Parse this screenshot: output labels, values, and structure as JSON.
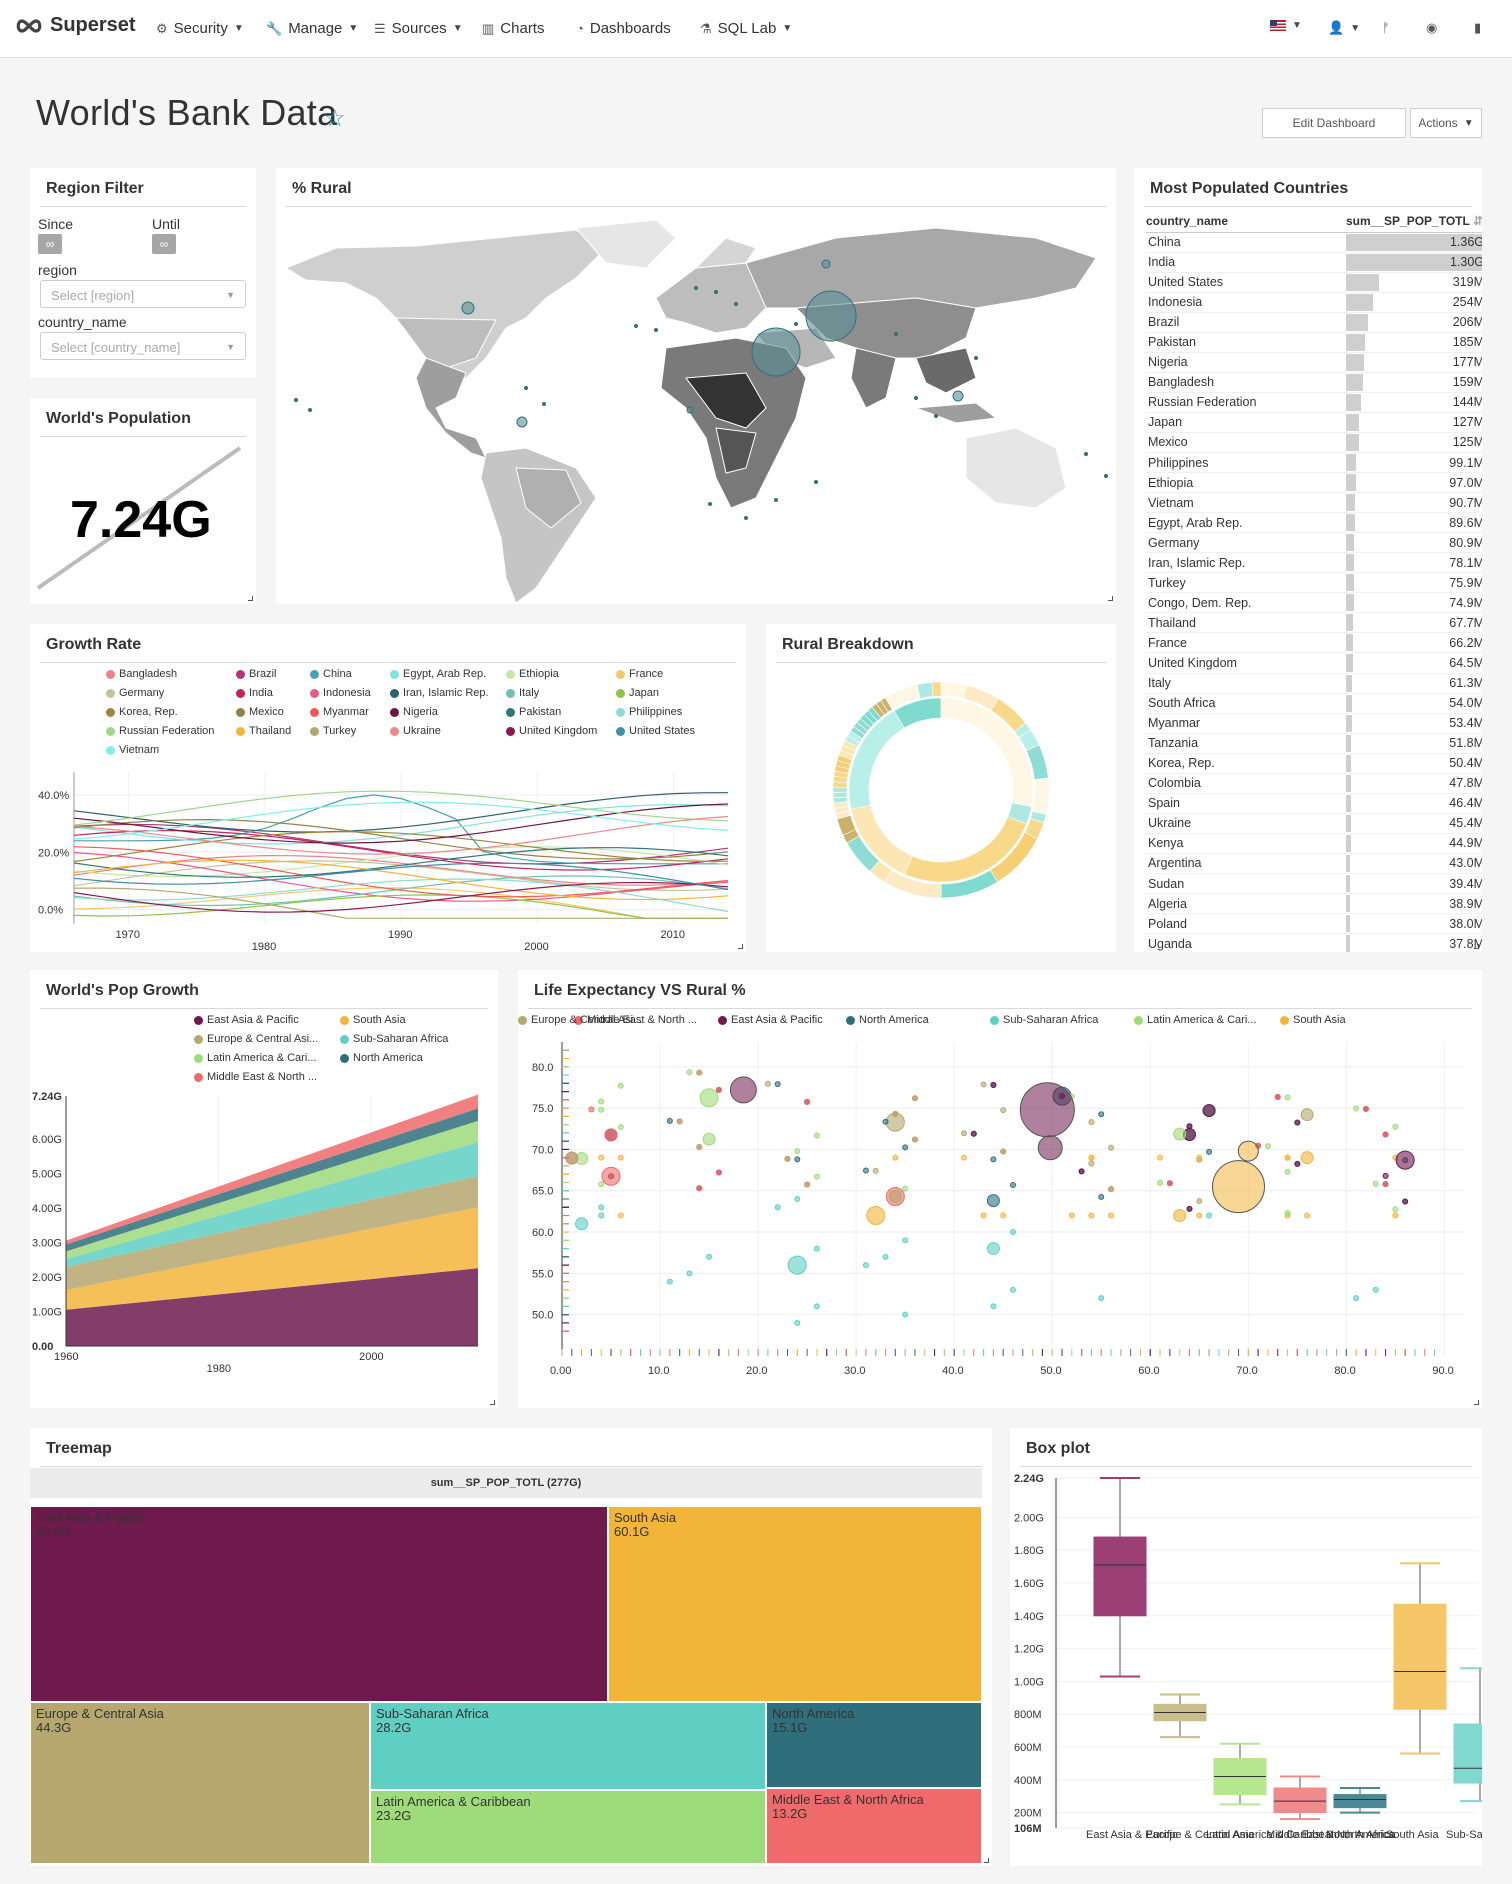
{
  "nav": {
    "brand": "Superset",
    "items": [
      {
        "label": "Security",
        "icon": "gear-icon",
        "caret": true
      },
      {
        "label": "Manage",
        "icon": "wrench-icon",
        "caret": true
      },
      {
        "label": "Sources",
        "icon": "database-icon",
        "caret": true
      },
      {
        "label": "Charts",
        "icon": "bar-chart-icon",
        "caret": false
      },
      {
        "label": "Dashboards",
        "icon": "dashboard-icon",
        "caret": false
      },
      {
        "label": "SQL Lab",
        "icon": "flask-icon",
        "caret": true
      }
    ],
    "right_icons": [
      "us-flag-icon",
      "user-icon",
      "git-branch-icon",
      "github-icon",
      "book-icon"
    ]
  },
  "dashboard": {
    "title": "World's Bank Data",
    "edit_button": "Edit Dashboard",
    "actions_button": "Actions"
  },
  "region_filter": {
    "title": "Region Filter",
    "since_label": "Since",
    "until_label": "Until",
    "since_value": "∞",
    "until_value": "∞",
    "region_label": "region",
    "region_placeholder": "Select [region]",
    "country_label": "country_name",
    "country_placeholder": "Select [country_name]"
  },
  "world_population": {
    "title": "World's Population",
    "value": "7.24G"
  },
  "rural_map": {
    "title": "% Rural"
  },
  "most_populated": {
    "title": "Most Populated Countries",
    "col_country": "country_name",
    "col_value": "sum__SP_POP_TOTL",
    "rows": [
      {
        "country": "China",
        "value": "1.36G",
        "num": 1360
      },
      {
        "country": "India",
        "value": "1.30G",
        "num": 1300
      },
      {
        "country": "United States",
        "value": "319M",
        "num": 319
      },
      {
        "country": "Indonesia",
        "value": "254M",
        "num": 254
      },
      {
        "country": "Brazil",
        "value": "206M",
        "num": 206
      },
      {
        "country": "Pakistan",
        "value": "185M",
        "num": 185
      },
      {
        "country": "Nigeria",
        "value": "177M",
        "num": 177
      },
      {
        "country": "Bangladesh",
        "value": "159M",
        "num": 159
      },
      {
        "country": "Russian Federation",
        "value": "144M",
        "num": 144
      },
      {
        "country": "Japan",
        "value": "127M",
        "num": 127
      },
      {
        "country": "Mexico",
        "value": "125M",
        "num": 125
      },
      {
        "country": "Philippines",
        "value": "99.1M",
        "num": 99.1
      },
      {
        "country": "Ethiopia",
        "value": "97.0M",
        "num": 97.0
      },
      {
        "country": "Vietnam",
        "value": "90.7M",
        "num": 90.7
      },
      {
        "country": "Egypt, Arab Rep.",
        "value": "89.6M",
        "num": 89.6
      },
      {
        "country": "Germany",
        "value": "80.9M",
        "num": 80.9
      },
      {
        "country": "Iran, Islamic Rep.",
        "value": "78.1M",
        "num": 78.1
      },
      {
        "country": "Turkey",
        "value": "75.9M",
        "num": 75.9
      },
      {
        "country": "Congo, Dem. Rep.",
        "value": "74.9M",
        "num": 74.9
      },
      {
        "country": "Thailand",
        "value": "67.7M",
        "num": 67.7
      },
      {
        "country": "France",
        "value": "66.2M",
        "num": 66.2
      },
      {
        "country": "United Kingdom",
        "value": "64.5M",
        "num": 64.5
      },
      {
        "country": "Italy",
        "value": "61.3M",
        "num": 61.3
      },
      {
        "country": "South Africa",
        "value": "54.0M",
        "num": 54.0
      },
      {
        "country": "Myanmar",
        "value": "53.4M",
        "num": 53.4
      },
      {
        "country": "Tanzania",
        "value": "51.8M",
        "num": 51.8
      },
      {
        "country": "Korea, Rep.",
        "value": "50.4M",
        "num": 50.4
      },
      {
        "country": "Colombia",
        "value": "47.8M",
        "num": 47.8
      },
      {
        "country": "Spain",
        "value": "46.4M",
        "num": 46.4
      },
      {
        "country": "Ukraine",
        "value": "45.4M",
        "num": 45.4
      },
      {
        "country": "Kenya",
        "value": "44.9M",
        "num": 44.9
      },
      {
        "country": "Argentina",
        "value": "43.0M",
        "num": 43.0
      },
      {
        "country": "Sudan",
        "value": "39.4M",
        "num": 39.4
      },
      {
        "country": "Algeria",
        "value": "38.9M",
        "num": 38.9
      },
      {
        "country": "Poland",
        "value": "38.0M",
        "num": 38.0
      },
      {
        "country": "Uganda",
        "value": "37.8M",
        "num": 37.8
      }
    ]
  },
  "growth_rate": {
    "title": "Growth Rate",
    "legend": [
      {
        "name": "Bangladesh",
        "color": "#e8838b"
      },
      {
        "name": "Brazil",
        "color": "#b5366f"
      },
      {
        "name": "China",
        "color": "#4aa0b5"
      },
      {
        "name": "Egypt, Arab Rep.",
        "color": "#7fe3e0"
      },
      {
        "name": "Ethiopia",
        "color": "#c8e6a6"
      },
      {
        "name": "France",
        "color": "#f6c86a"
      },
      {
        "name": "Germany",
        "color": "#c6c39a"
      },
      {
        "name": "India",
        "color": "#c0235f"
      },
      {
        "name": "Indonesia",
        "color": "#e75a8a"
      },
      {
        "name": "Iran, Islamic Rep.",
        "color": "#2f5f70"
      },
      {
        "name": "Italy",
        "color": "#6fc2b2"
      },
      {
        "name": "Japan",
        "color": "#8dc63f"
      },
      {
        "name": "Korea, Rep.",
        "color": "#a0853a"
      },
      {
        "name": "Mexico",
        "color": "#8f8448"
      },
      {
        "name": "Myanmar",
        "color": "#ef5b52"
      },
      {
        "name": "Nigeria",
        "color": "#6a1744"
      },
      {
        "name": "Pakistan",
        "color": "#2d7a78"
      },
      {
        "name": "Philippines",
        "color": "#8edbd0"
      },
      {
        "name": "Russian Federation",
        "color": "#9fd68c"
      },
      {
        "name": "Thailand",
        "color": "#f2b53a"
      },
      {
        "name": "Turkey",
        "color": "#b2a76e"
      },
      {
        "name": "Ukraine",
        "color": "#e88a8a"
      },
      {
        "name": "United Kingdom",
        "color": "#8a1a4f"
      },
      {
        "name": "United States",
        "color": "#3f8fa6"
      },
      {
        "name": "Vietnam",
        "color": "#7ff0e8"
      }
    ],
    "chart_data": {
      "type": "line",
      "x_ticks": [
        1970,
        1980,
        1990,
        2000,
        2010
      ],
      "y_ticks": [
        "0.0%",
        "20.0%",
        "40.0%"
      ],
      "xlim": [
        1966,
        2014
      ],
      "ylim": [
        -5,
        48
      ]
    }
  },
  "rural_breakdown": {
    "title": "Rural Breakdown"
  },
  "pop_growth": {
    "title": "World's Pop Growth",
    "legend": [
      {
        "name": "East Asia & Pacific",
        "color": "#6e1a4e"
      },
      {
        "name": "South Asia",
        "color": "#f2b53a"
      },
      {
        "name": "Europe & Central Asi...",
        "color": "#b5a76e"
      },
      {
        "name": "Sub-Saharan Africa",
        "color": "#5fcfc3"
      },
      {
        "name": "Latin America & Cari...",
        "color": "#9edb7a"
      },
      {
        "name": "North America",
        "color": "#2f6f7c"
      },
      {
        "name": "Middle East & North ...",
        "color": "#ef6b6b"
      }
    ],
    "chart_data": {
      "type": "area",
      "x_ticks": [
        1960,
        1980,
        2000
      ],
      "y_ticks": [
        "0.00",
        "1.00G",
        "2.00G",
        "3.00G",
        "4.00G",
        "5.00G",
        "6.00G",
        "7.24G"
      ],
      "xlim": [
        1960,
        2014
      ],
      "ylim": [
        0,
        7.24
      ],
      "x": [
        1960,
        2014
      ],
      "series": [
        {
          "name": "East Asia & Pacific",
          "values": [
            1.05,
            2.25
          ]
        },
        {
          "name": "South Asia",
          "values": [
            0.57,
            1.77
          ]
        },
        {
          "name": "Europe & Central Asi...",
          "values": [
            0.67,
            0.9
          ]
        },
        {
          "name": "Sub-Saharan Africa",
          "values": [
            0.23,
            0.98
          ]
        },
        {
          "name": "Latin America & Cari...",
          "values": [
            0.22,
            0.62
          ]
        },
        {
          "name": "North America",
          "values": [
            0.2,
            0.36
          ]
        },
        {
          "name": "Middle East & North ...",
          "values": [
            0.11,
            0.4
          ]
        }
      ]
    }
  },
  "life_expectancy": {
    "title": "Life Expectancy VS Rural %",
    "legend": [
      {
        "name": "Middle East & North ...",
        "color": "#ef6b6b"
      },
      {
        "name": "East Asia & Pacific",
        "color": "#6e1a4e"
      },
      {
        "name": "North America",
        "color": "#2f6f7c"
      },
      {
        "name": "Sub-Saharan Africa",
        "color": "#5fcfc3"
      },
      {
        "name": "Latin America & Cari...",
        "color": "#9edb7a"
      },
      {
        "name": "South Asia",
        "color": "#f2b53a"
      },
      {
        "name": "Europe & Central Asi...",
        "color": "#b5a76e"
      }
    ],
    "chart_data": {
      "type": "scatter",
      "x_ticks": [
        "0.00",
        "10.0",
        "20.0",
        "30.0",
        "40.0",
        "50.0",
        "60.0",
        "70.0",
        "80.0",
        "90.0"
      ],
      "y_ticks": [
        "50.0",
        "55.0",
        "60.0",
        "65.0",
        "70.0",
        "75.0",
        "80.0"
      ],
      "xlim": [
        0,
        92
      ],
      "ylim": [
        45,
        83
      ]
    }
  },
  "treemap": {
    "title": "Treemap",
    "header": "sum__SP_POP_TOTL (277G)",
    "cells": [
      {
        "name": "East Asia & Pacific",
        "value": "92.9G",
        "color": "#6e1a4e"
      },
      {
        "name": "South Asia",
        "value": "60.1G",
        "color": "#f2b53a"
      },
      {
        "name": "Europe & Central Asia",
        "value": "44.3G",
        "color": "#b5a76e"
      },
      {
        "name": "Sub-Saharan Africa",
        "value": "28.2G",
        "color": "#5fcfc3"
      },
      {
        "name": "North America",
        "value": "15.1G",
        "color": "#2f6f7c"
      },
      {
        "name": "Latin America & Caribbean",
        "value": "23.2G",
        "color": "#9edb7a"
      },
      {
        "name": "Middle East & North Africa",
        "value": "13.2G",
        "color": "#ef6b6b"
      }
    ]
  },
  "boxplot": {
    "title": "Box plot",
    "chart_data": {
      "type": "box",
      "y_ticks": [
        "106M",
        "200M",
        "400M",
        "600M",
        "800M",
        "1.00G",
        "1.20G",
        "1.40G",
        "1.60G",
        "1.80G",
        "2.00G",
        "2.24G"
      ],
      "ylim": [
        0.106,
        2.24
      ],
      "categories": [
        {
          "name": "East Asia & Pacific",
          "color": "#9b3f75",
          "q": [
            1.03,
            1.4,
            1.71,
            1.88,
            2.24
          ]
        },
        {
          "name": "Europe & Central Asia",
          "color": "#c9be8c",
          "q": [
            0.66,
            0.76,
            0.81,
            0.86,
            0.92
          ]
        },
        {
          "name": "Latin America & Caribbean",
          "color": "#b6e690",
          "q": [
            0.25,
            0.31,
            0.42,
            0.53,
            0.62
          ]
        },
        {
          "name": "Middle East & North Africa",
          "color": "#f08b8b",
          "q": [
            0.16,
            0.2,
            0.27,
            0.35,
            0.42
          ]
        },
        {
          "name": "North America",
          "color": "#4d8896",
          "q": [
            0.2,
            0.23,
            0.28,
            0.31,
            0.35
          ]
        },
        {
          "name": "South Asia",
          "color": "#f5c667",
          "q": [
            0.56,
            0.83,
            1.06,
            1.47,
            1.72
          ]
        },
        {
          "name": "Sub-Saharan Africa",
          "color": "#7fd9cf",
          "q": [
            0.27,
            0.38,
            0.47,
            0.74,
            1.08
          ]
        }
      ]
    }
  }
}
